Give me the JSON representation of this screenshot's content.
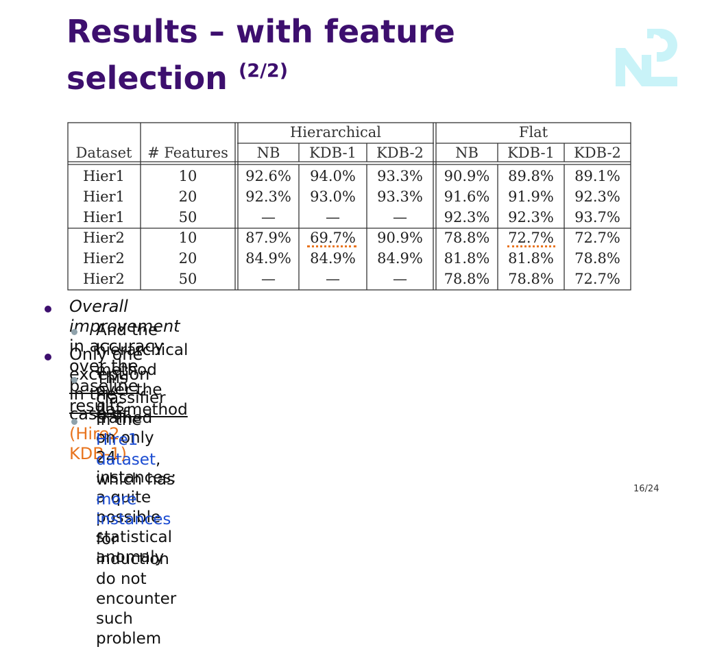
{
  "slide": {
    "title_line1": "Results – with feature",
    "title_line2": "selection",
    "title_sup": "(2/2)",
    "page_number": "16/24",
    "logo": "NLP logo",
    "colors": {
      "title": "#3d0f6e",
      "highlight": "#e8741e",
      "link_blue": "#1a4bd1",
      "logo": "#c9f3f8"
    }
  },
  "table": {
    "group_headers": {
      "hierarchical": "Hierarchical",
      "flat": "Flat"
    },
    "columns": [
      "Dataset",
      "# Features",
      "NB",
      "KDB-1",
      "KDB-2",
      "NB",
      "KDB-1",
      "KDB-2"
    ],
    "rows": [
      [
        "Hier1",
        "10",
        "92.6%",
        "94.0%",
        "93.3%",
        "90.9%",
        "89.8%",
        "89.1%"
      ],
      [
        "Hier1",
        "20",
        "92.3%",
        "93.0%",
        "93.3%",
        "91.6%",
        "91.9%",
        "92.3%"
      ],
      [
        "Hier1",
        "50",
        "—",
        "—",
        "—",
        "92.3%",
        "92.3%",
        "93.7%"
      ],
      [
        "Hier2",
        "10",
        "87.9%",
        "69.7%",
        "90.9%",
        "78.8%",
        "72.7%",
        "72.7%"
      ],
      [
        "Hier2",
        "20",
        "84.9%",
        "84.9%",
        "84.9%",
        "81.8%",
        "81.8%",
        "78.8%"
      ],
      [
        "Hier2",
        "50",
        "—",
        "—",
        "—",
        "78.8%",
        "78.8%",
        "72.7%"
      ]
    ]
  },
  "bullets": {
    "b1": {
      "italic": "Overall improvement",
      "mid": " in accuracy over the ",
      "link": "baseline results"
    },
    "b1a": {
      "text": "And the hierarchical method over the ",
      "link": "flat method"
    },
    "b2": {
      "text": "Only one exception in the case of ",
      "highlight": "(Hire2, KDB-1)"
    },
    "b2a": {
      "line1": "This classifier trained on only 24 instances: a quite",
      "line2": "possible statistical anomaly"
    },
    "b2b": {
      "pre": "In the ",
      "blue1": "Hire1 dataset",
      "mid": ", which has ",
      "blue2": "more instances",
      "post": " for",
      "line2": "induction do not encounter such problem"
    }
  }
}
